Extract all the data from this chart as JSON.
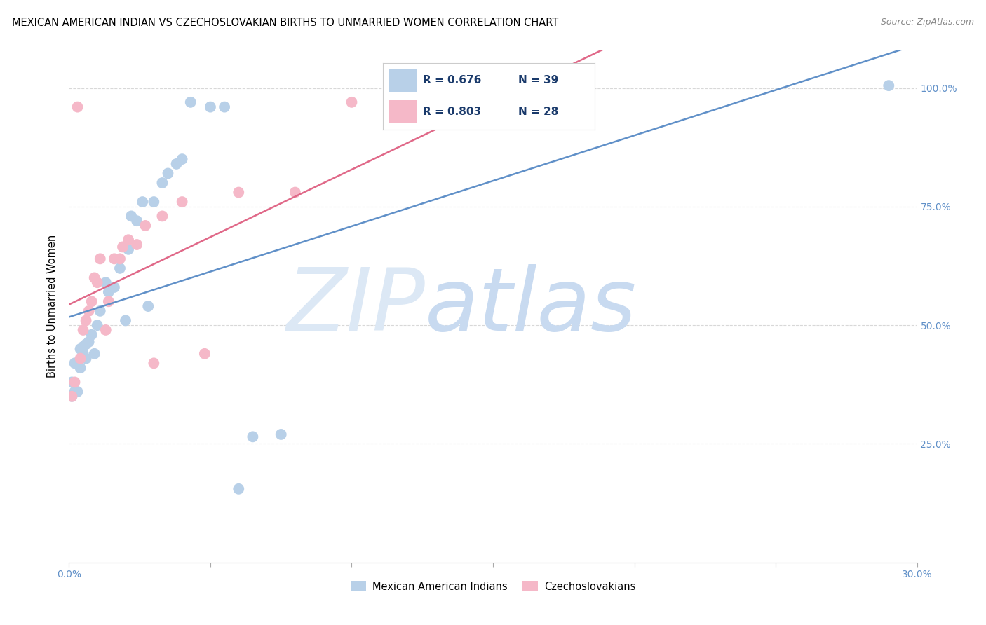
{
  "title": "MEXICAN AMERICAN INDIAN VS CZECHOSLOVAKIAN BIRTHS TO UNMARRIED WOMEN CORRELATION CHART",
  "source": "Source: ZipAtlas.com",
  "ylabel": "Births to Unmarried Women",
  "xlim": [
    0.0,
    0.3
  ],
  "ylim": [
    0.0,
    1.08
  ],
  "xtick_values": [
    0.0,
    0.05,
    0.1,
    0.15,
    0.2,
    0.25,
    0.3
  ],
  "xtick_labels": [
    "0.0%",
    "",
    "",
    "",
    "",
    "",
    "30.0%"
  ],
  "ytick_values": [
    0.25,
    0.5,
    0.75,
    1.0
  ],
  "ytick_labels": [
    "25.0%",
    "50.0%",
    "75.0%",
    "100.0%"
  ],
  "blue_R": "R = 0.676",
  "blue_N": "N = 39",
  "pink_R": "R = 0.803",
  "pink_N": "N = 28",
  "blue_color": "#b8d0e8",
  "pink_color": "#f5b8c8",
  "blue_line_color": "#6090c8",
  "pink_line_color": "#e06888",
  "watermark_zip_color": "#dce8f5",
  "watermark_atlas_color": "#c8daf0",
  "blue_label": "Mexican American Indians",
  "pink_label": "Czechoslovakians",
  "blue_x": [
    0.001,
    0.001,
    0.002,
    0.002,
    0.003,
    0.003,
    0.004,
    0.004,
    0.005,
    0.005,
    0.006,
    0.006,
    0.007,
    0.008,
    0.009,
    0.01,
    0.011,
    0.013,
    0.014,
    0.016,
    0.018,
    0.02,
    0.021,
    0.022,
    0.024,
    0.026,
    0.028,
    0.03,
    0.033,
    0.035,
    0.038,
    0.04,
    0.043,
    0.05,
    0.055,
    0.06,
    0.065,
    0.075,
    0.29
  ],
  "blue_y": [
    0.35,
    0.38,
    0.36,
    0.42,
    0.36,
    0.42,
    0.41,
    0.45,
    0.44,
    0.455,
    0.43,
    0.46,
    0.465,
    0.48,
    0.44,
    0.5,
    0.53,
    0.59,
    0.57,
    0.58,
    0.62,
    0.51,
    0.66,
    0.73,
    0.72,
    0.76,
    0.54,
    0.76,
    0.8,
    0.82,
    0.84,
    0.85,
    0.97,
    0.96,
    0.96,
    0.155,
    0.265,
    0.27,
    1.005
  ],
  "pink_x": [
    0.001,
    0.002,
    0.003,
    0.004,
    0.005,
    0.006,
    0.007,
    0.008,
    0.009,
    0.01,
    0.011,
    0.013,
    0.014,
    0.016,
    0.018,
    0.019,
    0.021,
    0.024,
    0.027,
    0.03,
    0.033,
    0.04,
    0.048,
    0.06,
    0.08,
    0.1,
    0.17,
    0.175
  ],
  "pink_y": [
    0.35,
    0.38,
    0.96,
    0.43,
    0.49,
    0.51,
    0.53,
    0.55,
    0.6,
    0.59,
    0.64,
    0.49,
    0.55,
    0.64,
    0.64,
    0.665,
    0.68,
    0.67,
    0.71,
    0.42,
    0.73,
    0.76,
    0.44,
    0.78,
    0.78,
    0.97,
    0.97,
    1.01
  ],
  "grid_color": "#d8d8d8",
  "tick_color": "#6090c8",
  "title_fontsize": 10.5,
  "source_fontsize": 9
}
